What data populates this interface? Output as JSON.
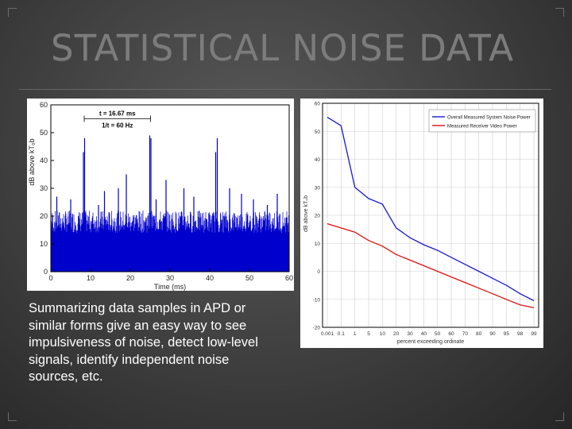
{
  "slide": {
    "title": "STATISTICAL NOISE DATA",
    "body": "Summarizing data samples in APD or similar forms give an easy way to see impulsiveness of noise, detect low-level signals, identify independent noise sources, etc."
  },
  "colors": {
    "signal_blue": "#0000cc",
    "series_red": "#dd1111",
    "background": "#3e3e3e",
    "title_gray": "#7c7c7c"
  },
  "chart_data": [
    {
      "type": "line",
      "xlabel": "Time (ms)",
      "ylabel": "dB above kT₀b",
      "xlim": [
        0,
        60
      ],
      "ylim": [
        0,
        60
      ],
      "xticks": [
        "0",
        "10",
        "20",
        "30",
        "40",
        "50",
        "60"
      ],
      "yticks": [
        "0",
        "10",
        "20",
        "30",
        "40",
        "50",
        "60"
      ],
      "grid": false,
      "annotations": [
        "t = 16.67 ms",
        "1/t = 60 Hz"
      ],
      "noise_floor": [
        8,
        20
      ],
      "spikes": {
        "x": [
          1.5,
          5,
          8.2,
          8.5,
          12,
          13.5,
          17,
          19,
          24.9,
          25.2,
          26.5,
          29,
          33.5,
          36,
          41.5,
          41.9,
          45,
          48,
          51,
          54.5,
          57
        ],
        "y": [
          27,
          26,
          43,
          48,
          24,
          29,
          30,
          35,
          49,
          48,
          26,
          33,
          30,
          27,
          43,
          48,
          30,
          28,
          26,
          24,
          28
        ]
      }
    },
    {
      "type": "line",
      "xlabel": "percent exceeding ordinate",
      "ylabel": "dB above kT₀b",
      "ylim": [
        -20,
        60
      ],
      "xticks": [
        "0.001",
        "0.1",
        "1",
        "5",
        "10",
        "20",
        "30",
        "40",
        "50",
        "60",
        "70",
        "80",
        "90",
        "95",
        "98",
        "99"
      ],
      "yticks": [
        "-20",
        "-10",
        "0",
        "10",
        "20",
        "30",
        "40",
        "50",
        "60"
      ],
      "grid": true,
      "legend_position": "top-right",
      "series": [
        {
          "name": "Overall Measured System Noise Power",
          "color": "#1a1acc",
          "x": [
            "0.001",
            "0.1",
            "1",
            "5",
            "10",
            "20",
            "30",
            "40",
            "50",
            "60",
            "70",
            "80",
            "90",
            "95",
            "98",
            "99"
          ],
          "values": [
            55,
            52,
            30,
            26,
            24,
            15.5,
            12,
            9.5,
            7.5,
            5,
            2.5,
            0,
            -2.5,
            -5,
            -8,
            -10.5
          ]
        },
        {
          "name": "Measured Receiver Video Power",
          "color": "#dd1111",
          "x": [
            "0.001",
            "1",
            "5",
            "10",
            "20",
            "30",
            "40",
            "50",
            "60",
            "70",
            "80",
            "90",
            "95",
            "98",
            "99"
          ],
          "values": [
            17,
            14,
            11,
            9,
            6,
            4,
            2,
            0,
            -2,
            -4,
            -6,
            -8,
            -10,
            -12,
            -13
          ]
        }
      ]
    }
  ]
}
